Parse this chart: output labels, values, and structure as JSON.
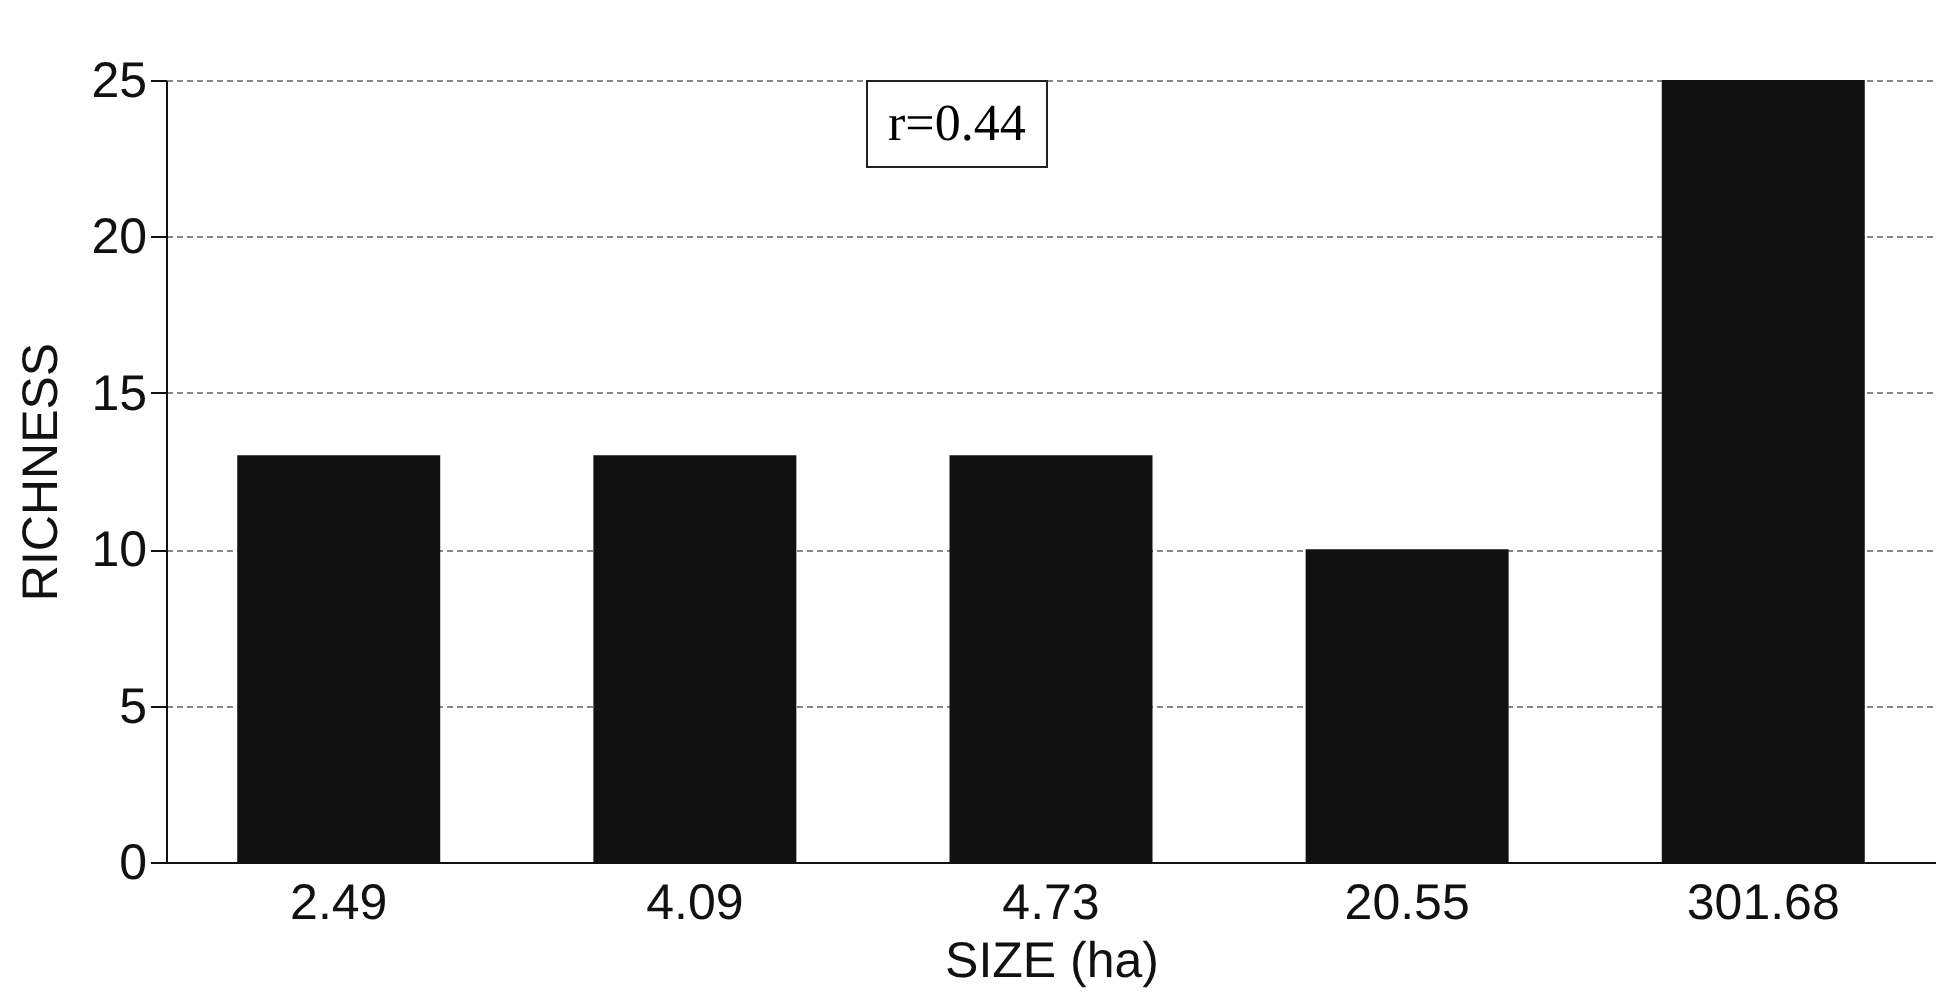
{
  "chart_data": {
    "type": "bar",
    "xlabel": "SIZE (ha)",
    "ylabel": "RICHNESS",
    "categories": [
      "2.49",
      "4.09",
      "4.73",
      "20.55",
      "301.68"
    ],
    "values": [
      13,
      13,
      13,
      10,
      25
    ],
    "color": "#111111",
    "ylim": [
      0,
      25
    ],
    "yticks": [
      0,
      5,
      10,
      15,
      20,
      25
    ],
    "grid": "y",
    "annotations": [
      "r=0.44"
    ]
  }
}
